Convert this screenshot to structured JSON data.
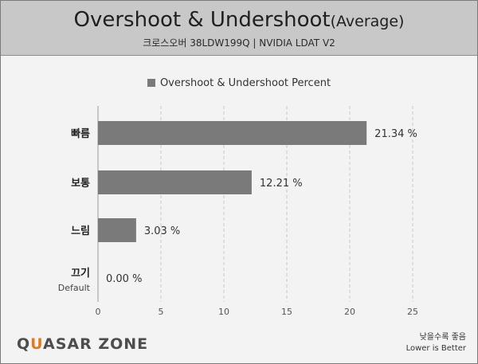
{
  "header": {
    "title_main": "Overshoot & Undershoot",
    "title_suffix": "(Average)",
    "subtitle": "크로스오버 38LDW199Q  |  NVIDIA LDAT V2"
  },
  "footer": {
    "logo_part1": "Q",
    "logo_accent": "U",
    "logo_part2": "ASAR ZONE",
    "note_line1": "낮을수록 좋음",
    "note_line2": "Lower is Better"
  },
  "colors": {
    "bar": "#7a7a7a",
    "header_bg": "#c8c8c8",
    "logo_accent": "#e07a1f"
  },
  "chart_data": {
    "type": "bar",
    "orientation": "horizontal",
    "legend": "Overshoot & Undershoot Percent",
    "legend_position": "top",
    "categories": [
      {
        "label": "빠름",
        "sublabel": ""
      },
      {
        "label": "보통",
        "sublabel": ""
      },
      {
        "label": "느림",
        "sublabel": ""
      },
      {
        "label": "끄기",
        "sublabel": "Default"
      }
    ],
    "series": [
      {
        "name": "Overshoot & Undershoot Percent",
        "values": [
          21.34,
          12.21,
          3.03,
          0.0
        ],
        "value_labels": [
          "21.34 %",
          "12.21 %",
          "3.03 %",
          "0.00 %"
        ]
      }
    ],
    "xlim": [
      0,
      25
    ],
    "xticks": [
      0,
      5,
      10,
      15,
      20,
      25
    ],
    "grid": "vertical-dashed"
  }
}
